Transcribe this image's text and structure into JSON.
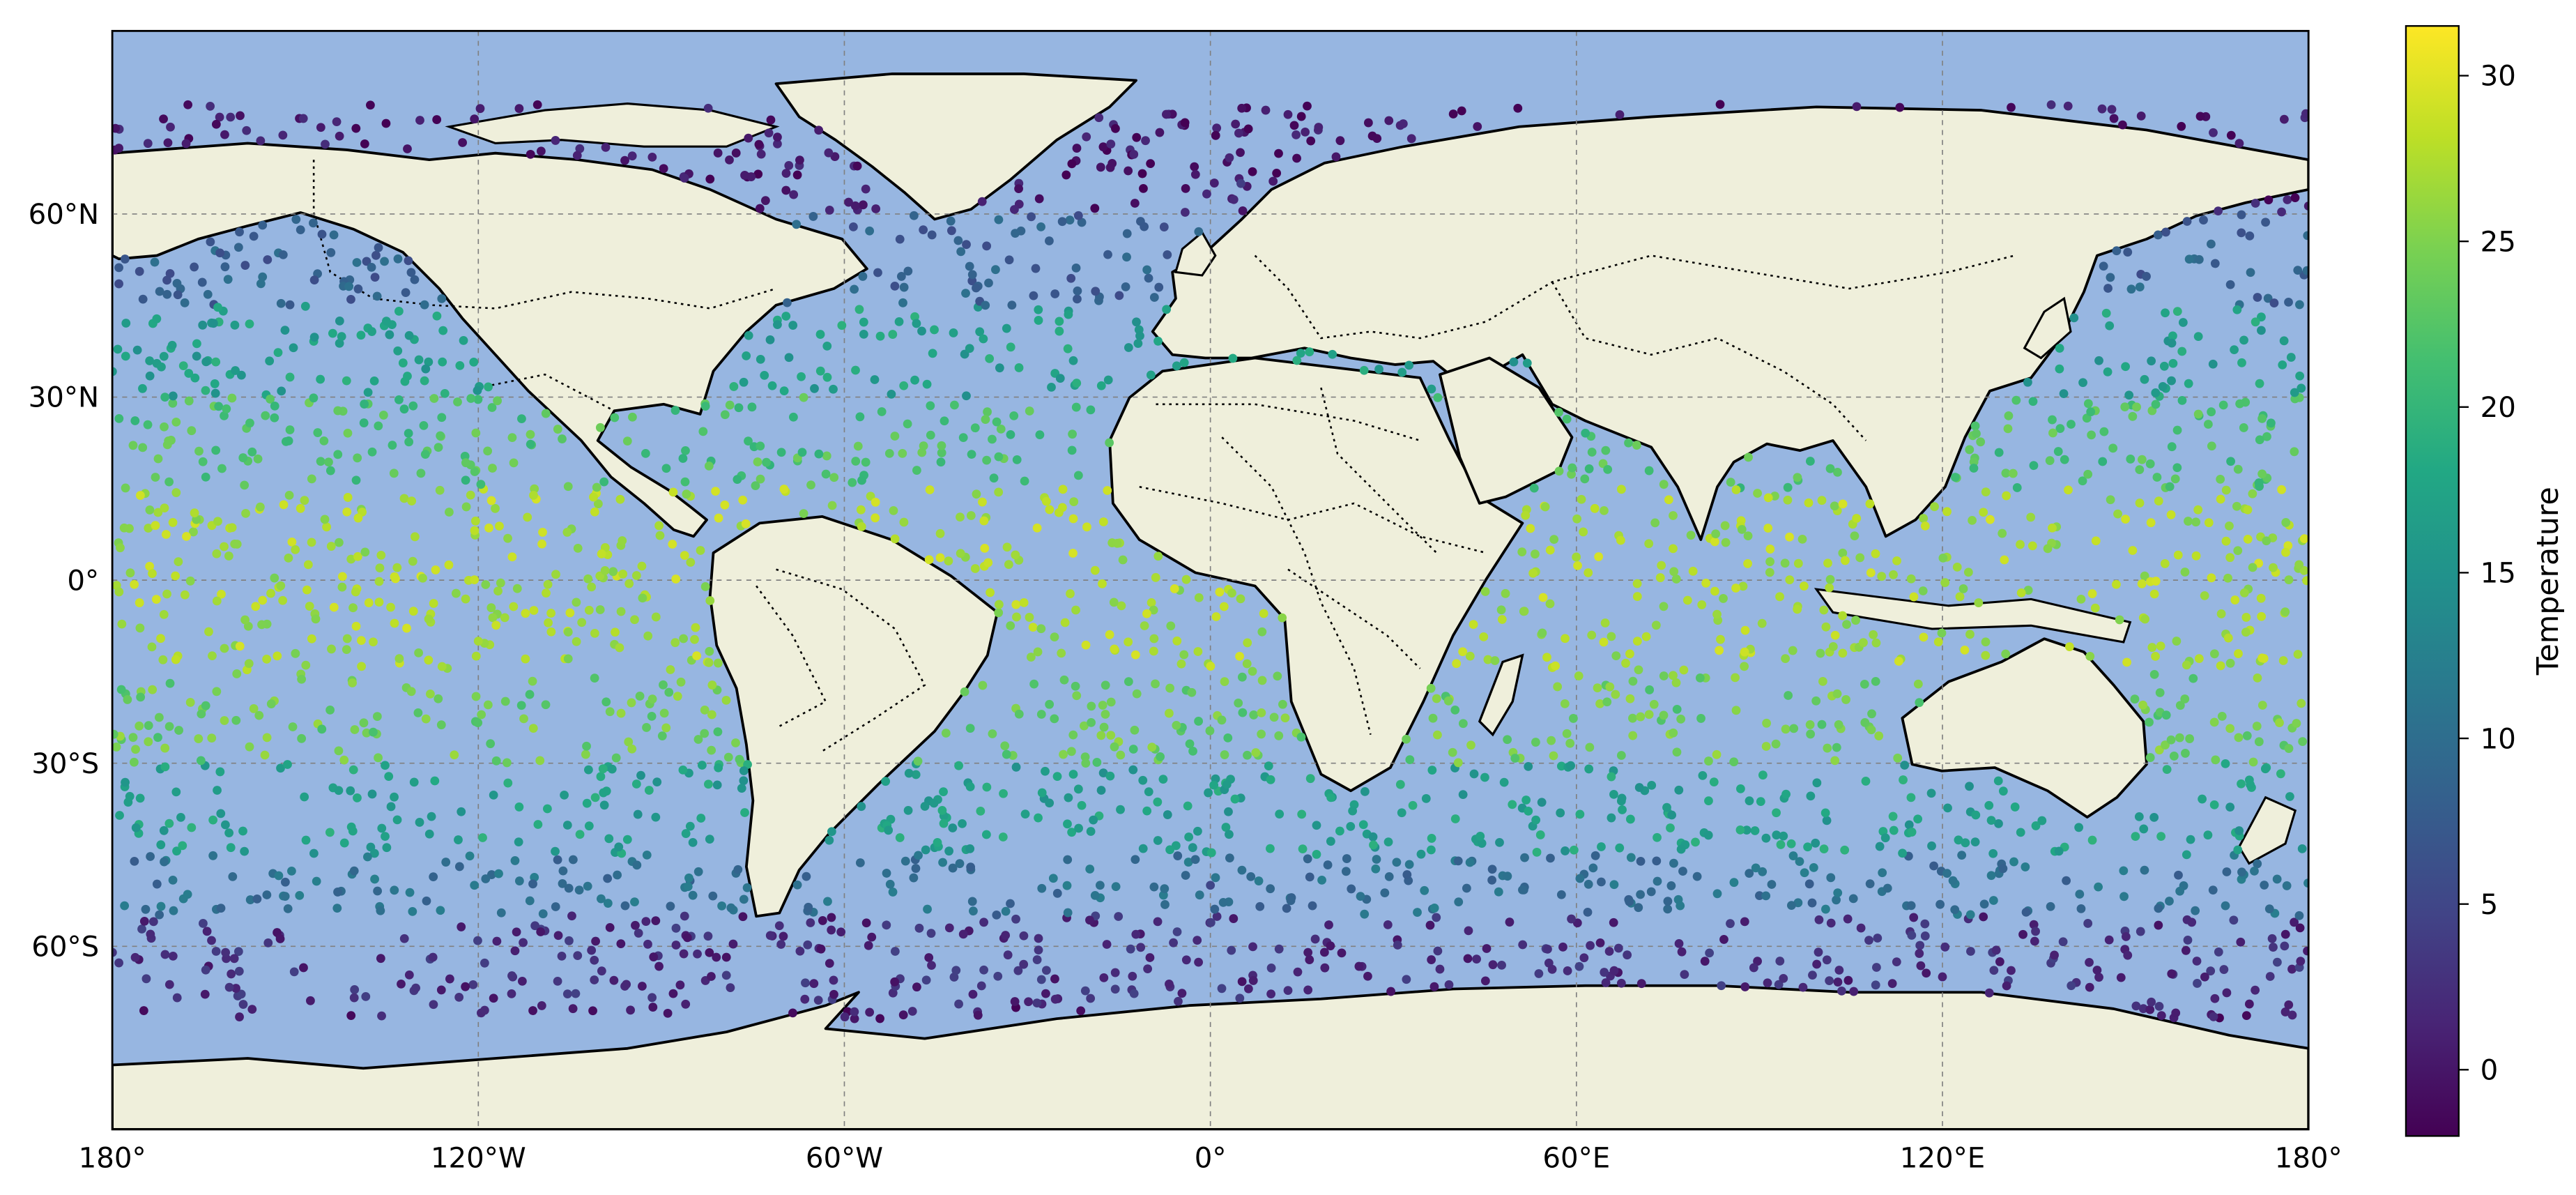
{
  "map": {
    "projection": "PlateCarree",
    "ocean_color": "#97b6e1",
    "land_color": "#efefdb",
    "coastline_color": "#000000",
    "borders_style": "dotted",
    "gridlines": true,
    "lon_ticks": [
      {
        "value": -180,
        "label": "180°"
      },
      {
        "value": -120,
        "label": "120°W"
      },
      {
        "value": -60,
        "label": "60°W"
      },
      {
        "value": 0,
        "label": "0°"
      },
      {
        "value": 60,
        "label": "60°E"
      },
      {
        "value": 120,
        "label": "120°E"
      },
      {
        "value": 180,
        "label": "180°"
      }
    ],
    "lat_ticks": [
      {
        "value": 60,
        "label": "60°N"
      },
      {
        "value": 30,
        "label": "30°N"
      },
      {
        "value": 0,
        "label": "0°"
      },
      {
        "value": -30,
        "label": "30°S"
      },
      {
        "value": -60,
        "label": "60°S"
      }
    ],
    "lon_range": [
      -180,
      180
    ],
    "lat_range": [
      -90,
      90
    ]
  },
  "colorbar": {
    "label": "Temperature",
    "colormap": "viridis",
    "vmin": -2,
    "vmax": 31.5,
    "ticks": [
      {
        "value": 0,
        "label": "0"
      },
      {
        "value": 5,
        "label": "5"
      },
      {
        "value": 10,
        "label": "10"
      },
      {
        "value": 15,
        "label": "15"
      },
      {
        "value": 20,
        "label": "20"
      },
      {
        "value": 25,
        "label": "25"
      },
      {
        "value": 30,
        "label": "30"
      }
    ]
  },
  "chart_data": {
    "type": "scatter",
    "x_name": "longitude",
    "y_name": "latitude",
    "color_name": "Temperature",
    "x_range": [
      -180,
      180
    ],
    "y_range": [
      -90,
      90
    ],
    "color_range": [
      -2,
      31.5
    ],
    "point_count_approx": 3000,
    "temperature_by_latitude_band": [
      {
        "lat_range": [
          60,
          80
        ],
        "typical_temperature": 0
      },
      {
        "lat_range": [
          45,
          60
        ],
        "typical_temperature": 8
      },
      {
        "lat_range": [
          30,
          45
        ],
        "typical_temperature": 17
      },
      {
        "lat_range": [
          15,
          30
        ],
        "typical_temperature": 22
      },
      {
        "lat_range": [
          -15,
          15
        ],
        "typical_temperature": 27
      },
      {
        "lat_range": [
          -30,
          -15
        ],
        "typical_temperature": 24
      },
      {
        "lat_range": [
          -45,
          -30
        ],
        "typical_temperature": 17
      },
      {
        "lat_range": [
          -55,
          -45
        ],
        "typical_temperature": 10
      },
      {
        "lat_range": [
          -70,
          -55
        ],
        "typical_temperature": 2
      }
    ],
    "sample_points": [
      {
        "lon": -150,
        "lat": 5,
        "temp": 27
      },
      {
        "lon": -120,
        "lat": -10,
        "temp": 27
      },
      {
        "lon": -100,
        "lat": 25,
        "temp": 24
      },
      {
        "lon": -40,
        "lat": 55,
        "temp": 6
      },
      {
        "lon": 5,
        "lat": 65,
        "temp": 4
      },
      {
        "lon": 20,
        "lat": 37,
        "temp": 17
      },
      {
        "lon": 70,
        "lat": -10,
        "temp": 28
      },
      {
        "lon": 150,
        "lat": 10,
        "temp": 29
      },
      {
        "lon": 150,
        "lat": 35,
        "temp": 18
      },
      {
        "lon": 0,
        "lat": -50,
        "temp": 5
      },
      {
        "lon": 120,
        "lat": -65,
        "temp": 1
      },
      {
        "lon": -160,
        "lat": -62,
        "temp": 2
      }
    ]
  }
}
